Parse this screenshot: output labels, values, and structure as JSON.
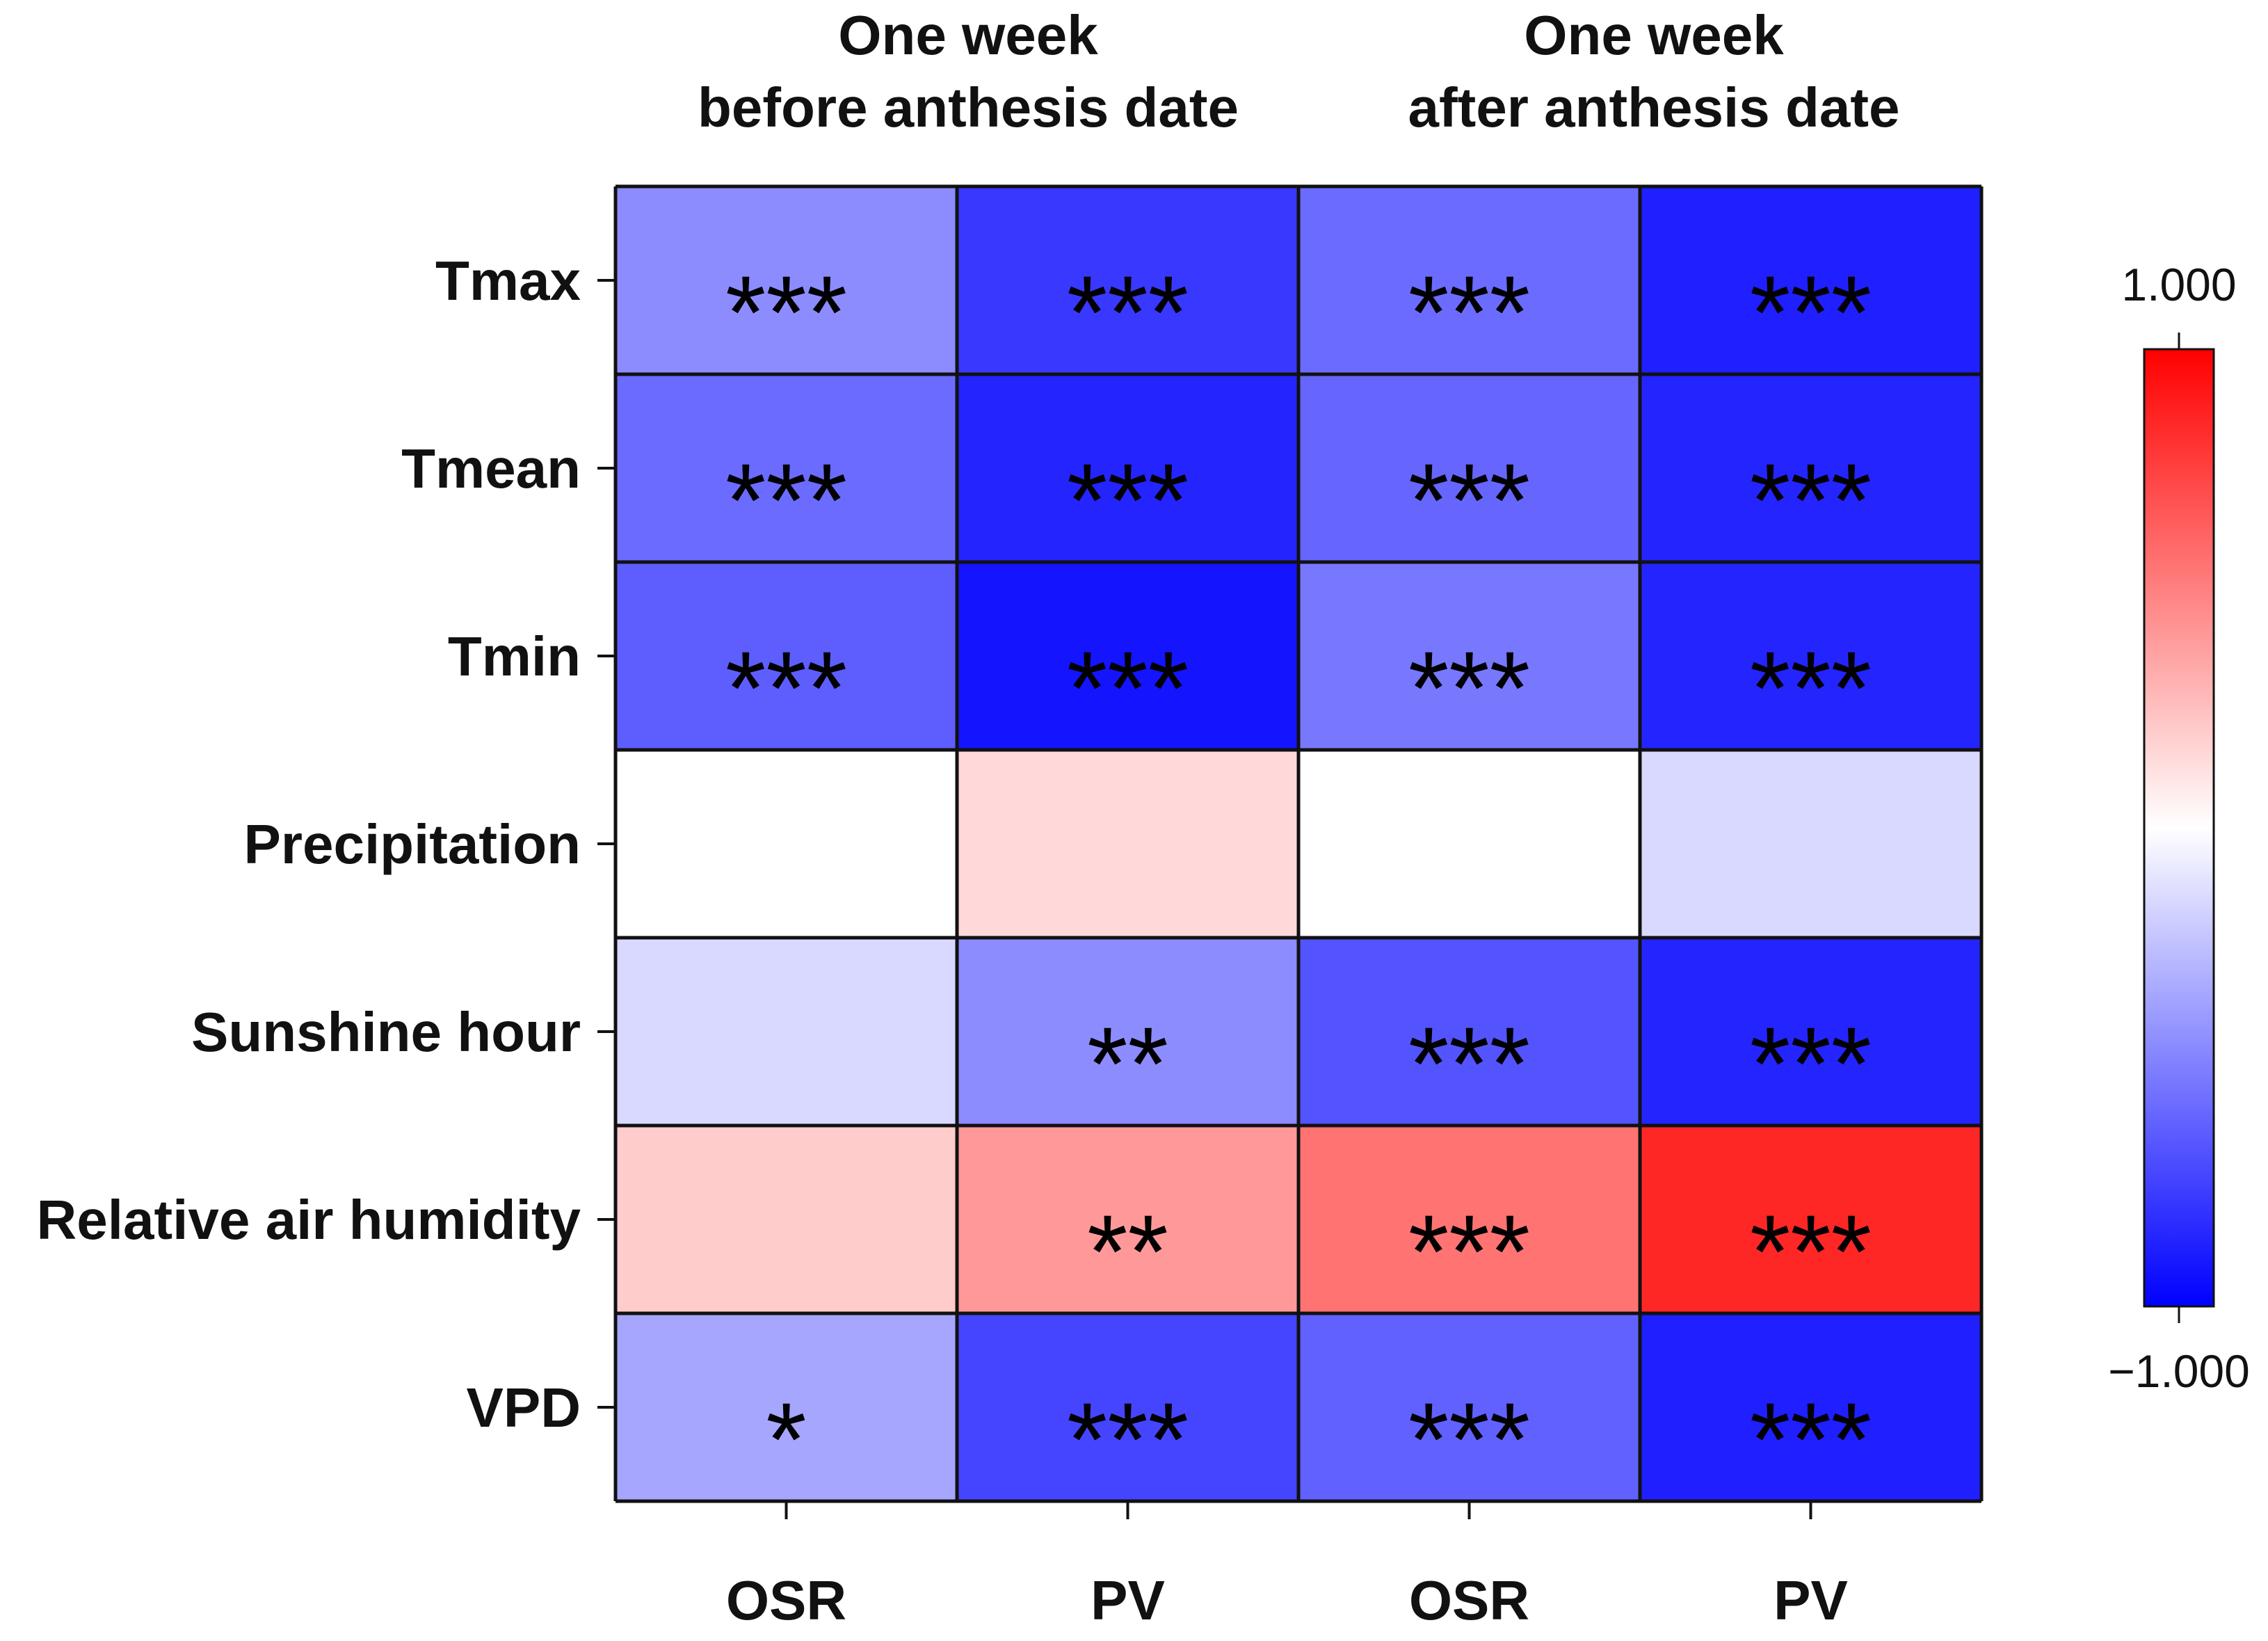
{
  "chart_data": {
    "type": "heatmap",
    "column_groups": [
      {
        "title_line1": "One week",
        "title_line2": "before anthesis date"
      },
      {
        "title_line1": "One week",
        "title_line2": "after anthesis date"
      }
    ],
    "columns": [
      "OSR",
      "PV",
      "OSR",
      "PV"
    ],
    "rows": [
      "Tmax",
      "Tmean",
      "Tmin",
      "Precipitation",
      "Sunshine hour",
      "Relative air humidity",
      "VPD"
    ],
    "values": [
      [
        -0.45,
        -0.78,
        -0.58,
        -0.88
      ],
      [
        -0.58,
        -0.86,
        -0.6,
        -0.86
      ],
      [
        -0.63,
        -0.92,
        -0.53,
        -0.86
      ],
      [
        0.0,
        0.15,
        0.0,
        -0.15
      ],
      [
        -0.15,
        -0.45,
        -0.67,
        -0.86
      ],
      [
        0.2,
        0.4,
        0.55,
        0.85
      ],
      [
        -0.35,
        -0.73,
        -0.62,
        -0.88
      ]
    ],
    "significance": [
      [
        "***",
        "***",
        "***",
        "***"
      ],
      [
        "***",
        "***",
        "***",
        "***"
      ],
      [
        "***",
        "***",
        "***",
        "***"
      ],
      [
        "",
        "",
        "",
        ""
      ],
      [
        "",
        "**",
        "***",
        "***"
      ],
      [
        "",
        "**",
        "***",
        "***"
      ],
      [
        "*",
        "***",
        "***",
        "***"
      ]
    ],
    "colorbar": {
      "max_label": "1.000",
      "min_label": "−1.000",
      "vmin": -1,
      "vmax": 1,
      "color_min": "#0000ff",
      "color_mid": "#ffffff",
      "color_max": "#ff0000",
      "placement": "right"
    },
    "grid_line_color": "#111111"
  }
}
